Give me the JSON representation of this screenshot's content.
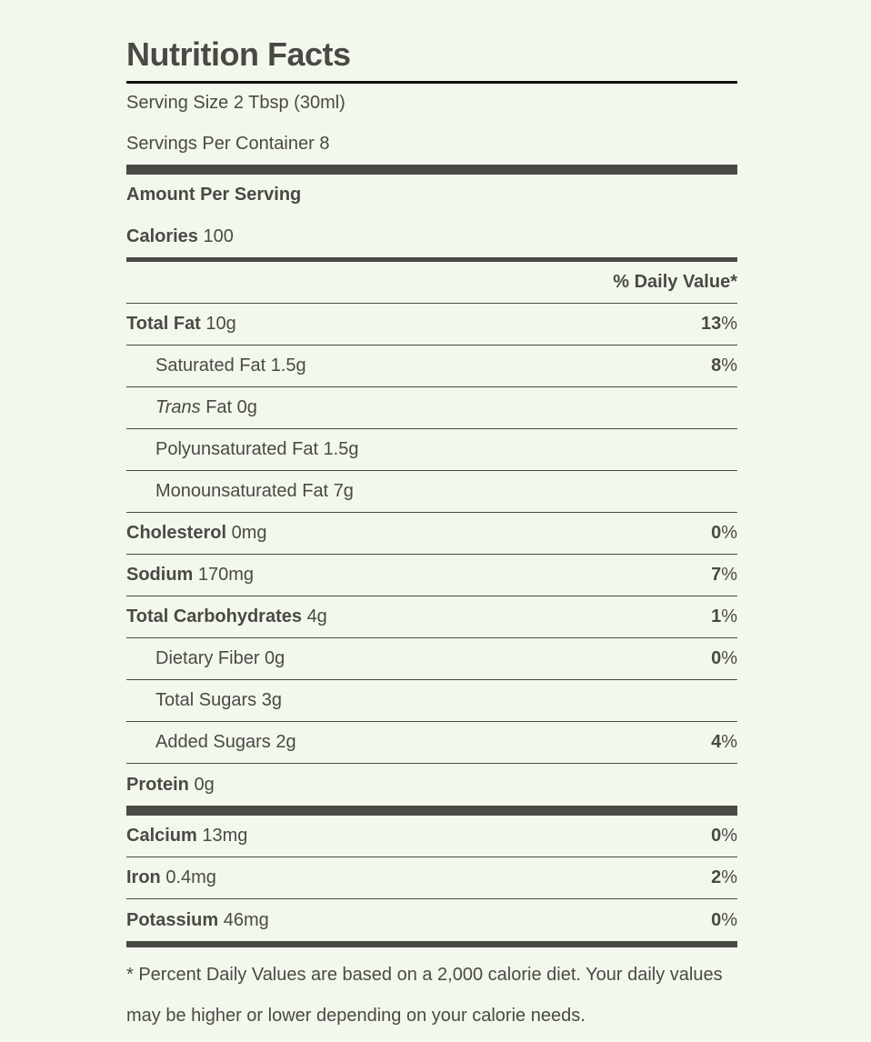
{
  "title": "Nutrition Facts",
  "serving_size": "Serving Size 2 Tbsp (30ml)",
  "servings": "Servings Per Container 8",
  "amount_per_serving": "Amount Per Serving",
  "calories": {
    "label": "Calories",
    "value": "100"
  },
  "dv_header": "% Daily Value*",
  "nutrients": [
    {
      "name": "Total Fat",
      "amount": "10g",
      "dv": "13",
      "dv_unit": "%"
    },
    {
      "name": "Saturated Fat",
      "amount": "1.5g",
      "indent": true,
      "dv": "8",
      "dv_unit": "%"
    },
    {
      "italic": "Trans",
      "name": "Fat",
      "amount": "0g",
      "indent": true
    },
    {
      "name": "Polyunsaturated Fat",
      "amount": "1.5g",
      "indent": true
    },
    {
      "name": "Monounsaturated Fat",
      "amount": "7g",
      "indent": true
    },
    {
      "name": "Cholesterol",
      "amount": "0mg",
      "dv": "0",
      "dv_unit": "%"
    },
    {
      "name": "Sodium",
      "amount": "170mg",
      "dv": "7",
      "dv_unit": "%"
    },
    {
      "name": "Total Carbohydrates",
      "amount": "4g",
      "dv": "1",
      "dv_unit": "%"
    },
    {
      "name": "Dietary Fiber",
      "amount": "0g",
      "indent": true,
      "dv": "0",
      "dv_unit": "%"
    },
    {
      "name": "Total Sugars",
      "amount": "3g",
      "indent": true
    },
    {
      "name": "Added Sugars",
      "amount": "2g",
      "indent": true,
      "dv": "4",
      "dv_unit": "%"
    },
    {
      "name": "Protein",
      "amount": "0g"
    }
  ],
  "minerals": [
    {
      "name": "Calcium",
      "amount": "13mg",
      "dv": "0",
      "dv_unit": "%"
    },
    {
      "name": "Iron",
      "amount": "0.4mg",
      "dv": "2",
      "dv_unit": "%"
    },
    {
      "name": "Potassium",
      "amount": "46mg",
      "dv": "0",
      "dv_unit": "%"
    }
  ],
  "footnote": "* Percent Daily Values are based on a 2,000 calorie diet. Your daily values may be higher or lower depending on your calorie needs."
}
